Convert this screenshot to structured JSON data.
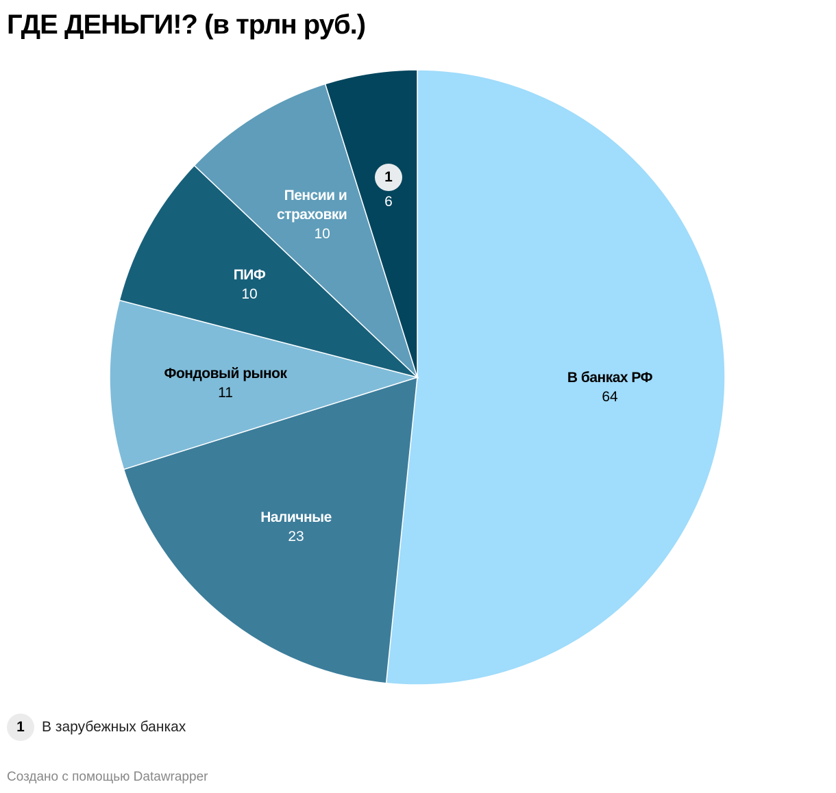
{
  "title": "ГДЕ ДЕНЬГИ!? (в трлн руб.)",
  "chart_data": {
    "type": "pie",
    "title": "ГДЕ ДЕНЬГИ!? (в трлн руб.)",
    "unit": "трлн руб.",
    "categories": [
      "В банках РФ",
      "Наличные",
      "Фондовый рынок",
      "ПИФ",
      "Пенсии и страховки",
      "В зарубежных банках"
    ],
    "values": [
      64,
      23,
      11,
      10,
      10,
      6
    ],
    "colors": [
      "#a0dcfb",
      "#3c7d9a",
      "#7fbcd9",
      "#17607a",
      "#5f9dba",
      "#03455d"
    ],
    "start_angle_deg": 0,
    "direction": "clockwise"
  },
  "slices": [
    {
      "label": "В банках РФ",
      "value": "64"
    },
    {
      "label": "Наличные",
      "value": "23"
    },
    {
      "label": "Фондовый рынок",
      "value": "11"
    },
    {
      "label": "ПИФ",
      "value": "10"
    },
    {
      "label": "Пенсии и",
      "label2": "страховки",
      "value": "10"
    },
    {
      "badge": "1",
      "value": "6"
    }
  ],
  "legend": {
    "badge": "1",
    "text": "В зарубежных банках"
  },
  "footer": "Создано с помощью Datawrapper"
}
